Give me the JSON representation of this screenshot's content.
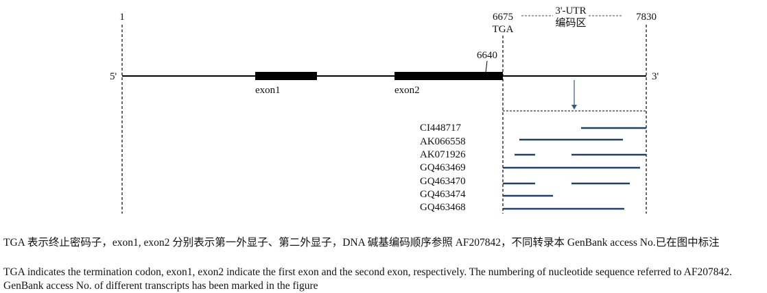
{
  "positions": {
    "start": "1",
    "stop": "6675",
    "stop_codon": "TGA",
    "end": "7830",
    "exon2_end": "6640",
    "utr_label": "3'-UTR",
    "utr_sublabel": "编码区"
  },
  "strand": {
    "five_prime": "5'",
    "three_prime": "3'"
  },
  "exons": [
    {
      "name": "exon1"
    },
    {
      "name": "exon2"
    }
  ],
  "transcripts": [
    {
      "id": "CI448717"
    },
    {
      "id": "AK066558"
    },
    {
      "id": "AK071926"
    },
    {
      "id": "GQ463469"
    },
    {
      "id": "GQ463470"
    },
    {
      "id": "GQ463474"
    },
    {
      "id": "GQ463468"
    }
  ],
  "caption": {
    "zh": "TGA 表示终止密码子，exon1, exon2 分别表示第一外显子、第二外显子，DNA 碱基编码顺序参照 AF207842，不同转录本 GenBank access No.已在图中标注",
    "en": "TGA indicates the termination codon, exon1, exon2 indicate the first exon and the second exon, respectively. The numbering of nucleotide sequence referred to AF207842. GenBank access No. of different transcripts has been marked in the figure"
  },
  "colors": {
    "transcript_line": "#1f3f6e",
    "arrow": "#2e5b8a",
    "gene_line": "#000000"
  }
}
